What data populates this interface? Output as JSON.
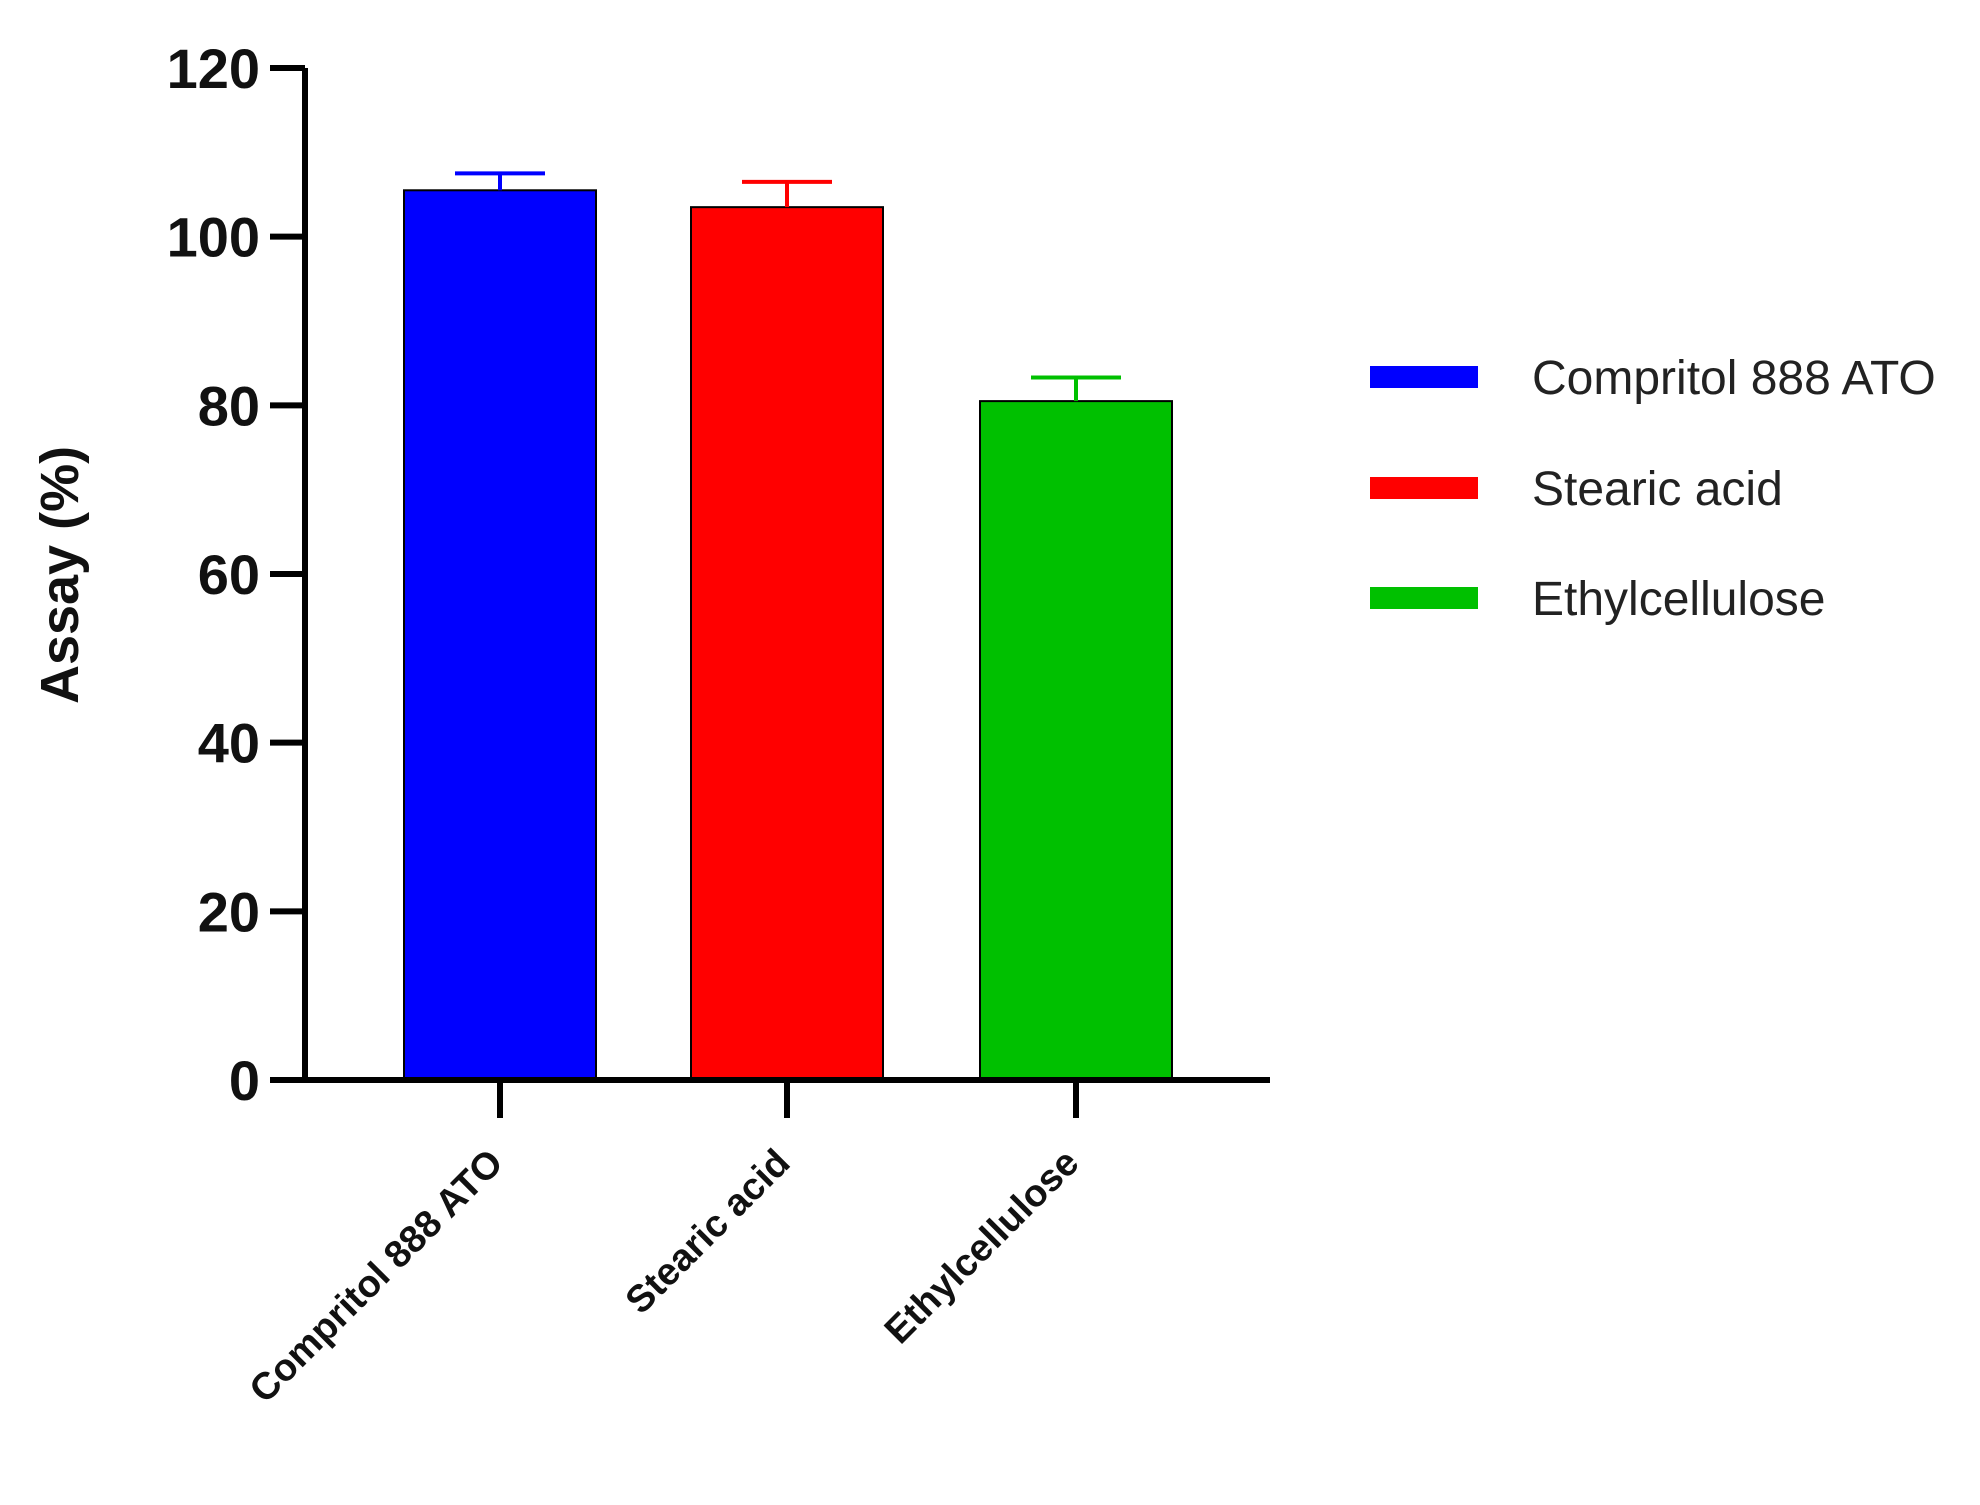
{
  "chart_data": {
    "type": "bar",
    "title": "",
    "xlabel": "",
    "ylabel": "Assay (%)",
    "ylim": [
      0,
      120
    ],
    "yticks": [
      "0",
      "20",
      "40",
      "60",
      "80",
      "100",
      "120"
    ],
    "categories": [
      "Compritol 888 ATO",
      "Stearic acid",
      "Ethylcellulose"
    ],
    "values": [
      105.5,
      103.5,
      80.5
    ],
    "errors": [
      2.0,
      3.0,
      2.8
    ],
    "colors": [
      "#0000ff",
      "#ff0000",
      "#00c000"
    ],
    "grid": false,
    "legend": {
      "position": "right",
      "entries": [
        "Compritol 888 ATO",
        "Stearic acid",
        "Ethylcellulose"
      ]
    }
  }
}
